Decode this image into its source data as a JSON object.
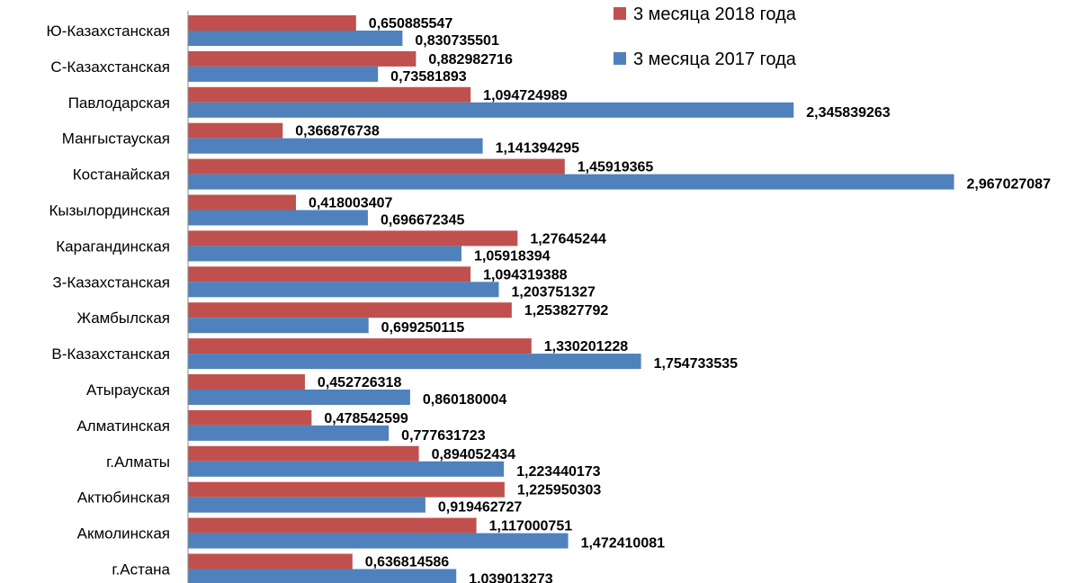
{
  "chart_data": {
    "type": "bar",
    "orientation": "horizontal",
    "grid": false,
    "legend_position": "top-right",
    "categories": [
      "Ю-Казахстанская",
      "С-Казахстанская",
      "Павлодарская",
      "Мангыстауская",
      "Костанайская",
      "Кызылординская",
      "Карагандинская",
      "З-Казахстанская",
      "Жамбылская",
      "В-Казахстанская",
      "Атырауская",
      "Алматинская",
      "г.Алматы",
      "Актюбинская",
      "Акмолинская",
      "г.Астана"
    ],
    "series": [
      {
        "name": "3 месяца 2018 года",
        "color": "#c0504d",
        "values": [
          0.650885547,
          0.882982716,
          1.094724989,
          0.366876738,
          1.45919365,
          0.418003407,
          1.27645244,
          1.094319388,
          1.253827792,
          1.330201228,
          0.452726318,
          0.478542599,
          0.894052434,
          1.225950303,
          1.117000751,
          0.636814586
        ],
        "labels": [
          "0,650885547",
          "0,882982716",
          "1,094724989",
          "0,366876738",
          "1,45919365",
          "0,418003407",
          "1,27645244",
          "1,094319388",
          "1,253827792",
          "1,330201228",
          "0,452726318",
          "0,478542599",
          "0,894052434",
          "1,225950303",
          "1,117000751",
          "0,636814586"
        ]
      },
      {
        "name": "3 месяца 2017 года",
        "color": "#4f81bd",
        "values": [
          0.830735501,
          0.73581893,
          2.345839263,
          1.141394295,
          2.967027087,
          0.696672345,
          1.05918394,
          1.203751327,
          0.699250115,
          1.754733535,
          0.860180004,
          0.777631723,
          1.223440173,
          0.919462727,
          1.472410081,
          1.039013273
        ],
        "labels": [
          "0,830735501",
          "0,73581893",
          "2,345839263",
          "1,141394295",
          "2,967027087",
          "0,696672345",
          "1,05918394",
          "1,203751327",
          "0,699250115",
          "1,754733535",
          "0,860180004",
          "0,777631723",
          "1,223440173",
          "0,919462727",
          "1,472410081",
          "1,039013273"
        ]
      }
    ]
  }
}
